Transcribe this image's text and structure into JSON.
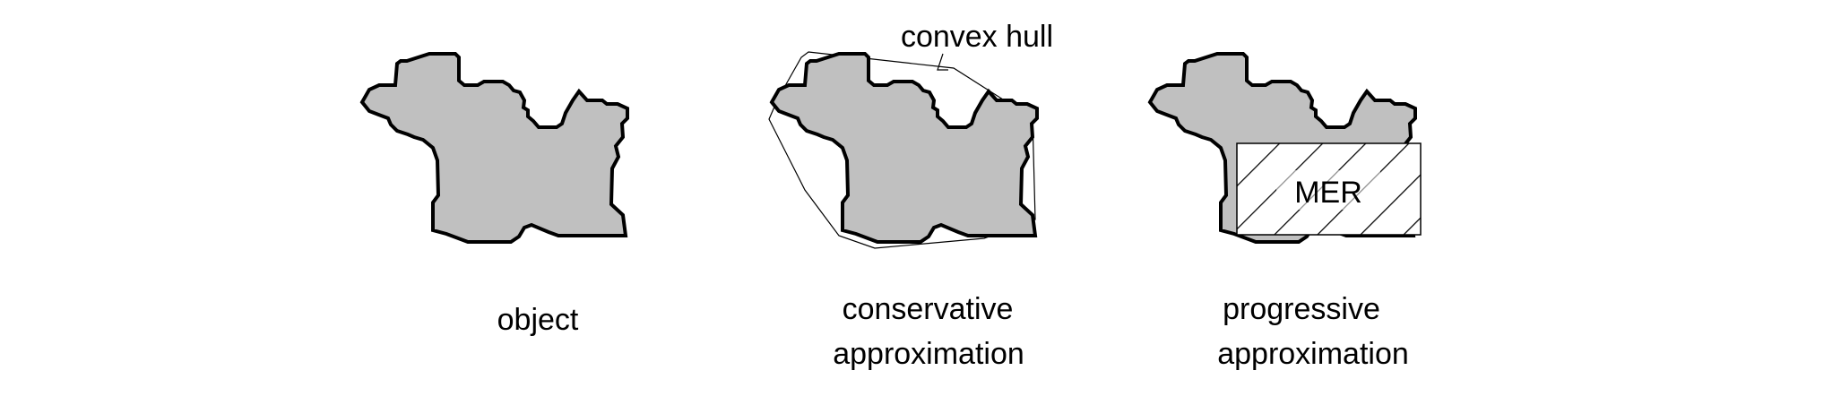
{
  "diagram": {
    "panels": [
      {
        "id": "object",
        "caption": [
          "object"
        ]
      },
      {
        "id": "conservative",
        "caption": [
          "conservative",
          "approximation"
        ],
        "annotation": "convex hull"
      },
      {
        "id": "progressive",
        "caption": [
          "progressive",
          "approximation"
        ],
        "inner_label": "MER"
      }
    ],
    "colors": {
      "object_fill": "#c0c0c0",
      "outline": "#000000",
      "mer_fill": "#ffffff"
    }
  }
}
